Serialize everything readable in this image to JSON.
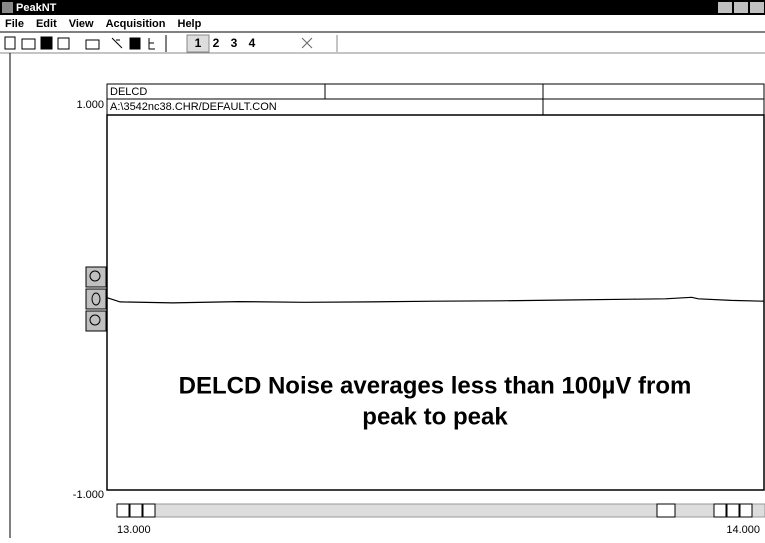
{
  "window": {
    "title": "PeakNT"
  },
  "menu": [
    "File",
    "Edit",
    "View",
    "Acquisition",
    "Help"
  ],
  "toolbar": {
    "tabs": [
      "1",
      "2",
      "3",
      "4"
    ]
  },
  "chart_data": {
    "type": "line",
    "header": [
      "DELCD",
      "A:\\3542nc38.CHR/DEFAULT.CON"
    ],
    "annotation": [
      "DELCD Noise averages less than 100µV from",
      "peak to peak"
    ],
    "x": [
      13.0,
      13.02,
      13.1,
      13.2,
      13.3,
      13.4,
      13.5,
      13.6,
      13.7,
      13.8,
      13.85,
      13.89,
      13.9,
      13.95,
      14.0
    ],
    "values": [
      0.012,
      -0.01,
      -0.015,
      -0.008,
      -0.012,
      -0.01,
      -0.006,
      -0.004,
      0.0,
      0.004,
      0.006,
      0.014,
      0.006,
      -0.002,
      -0.006
    ],
    "color": "#000000",
    "xlim": [
      13,
      14
    ],
    "ylim": [
      -1,
      1
    ],
    "xticks": [
      {
        "value": 13,
        "label": "13.000"
      },
      {
        "value": 14,
        "label": "14.000"
      }
    ],
    "yticks": [
      {
        "value": -1,
        "label": "-1.000"
      },
      {
        "value": 1,
        "label": "1.000"
      }
    ]
  }
}
